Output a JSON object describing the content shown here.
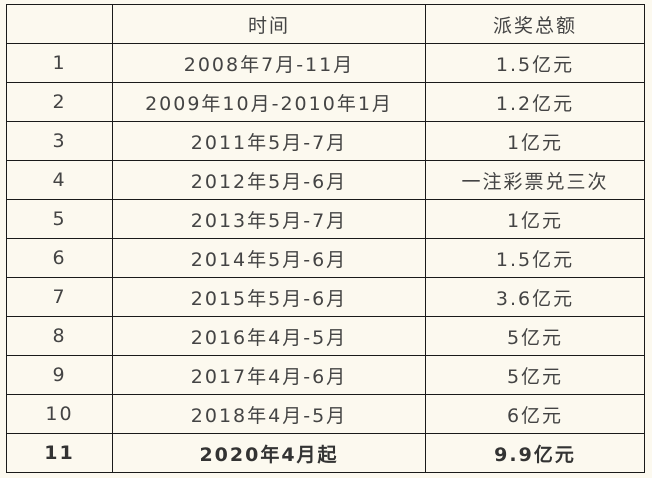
{
  "table": {
    "headers": [
      "",
      "时间",
      "派奖总额"
    ],
    "rows": [
      [
        "1",
        "2008年7月-11月",
        "1.5亿元"
      ],
      [
        "2",
        "2009年10月-2010年1月",
        "1.2亿元"
      ],
      [
        "3",
        "2011年5月-7月",
        "1亿元"
      ],
      [
        "4",
        "2012年5月-6月",
        "一注彩票兑三次"
      ],
      [
        "5",
        "2013年5月-7月",
        "1亿元"
      ],
      [
        "6",
        "2014年5月-6月",
        "1.5亿元"
      ],
      [
        "7",
        "2015年5月-6月",
        "3.6亿元"
      ],
      [
        "8",
        "2016年4月-5月",
        "5亿元"
      ],
      [
        "9",
        "2017年4月-6月",
        "5亿元"
      ],
      [
        "10",
        "2018年4月-5月",
        "6亿元"
      ],
      [
        "11",
        "2020年4月起",
        "9.9亿元"
      ]
    ],
    "bold_last_row": true
  }
}
